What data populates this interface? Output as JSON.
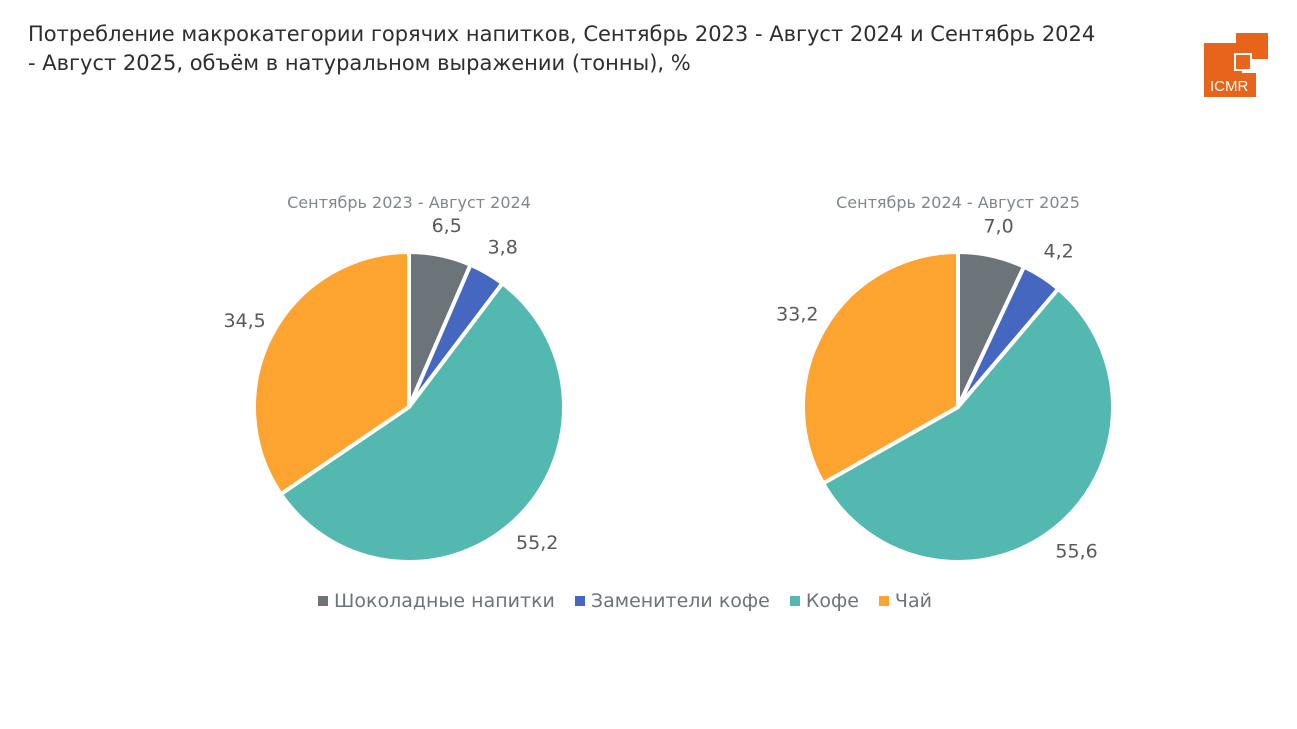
{
  "title": "Потребление макрокатегории горячих напитков, Сентябрь 2023 - Август 2024 и Сентябрь 2024 - Август 2025, объём в натуральном выражении (тонны), %",
  "logo_text": "ICMR",
  "logo_color": "#e8641b",
  "chart_data": [
    {
      "type": "pie",
      "title": "Сентябрь 2023 - Август 2024",
      "categories": [
        "Шоколадные напитки",
        "Заменители кофе",
        "Кофе",
        "Чай"
      ],
      "values": [
        6.5,
        3.8,
        55.2,
        34.5
      ],
      "labels": [
        "6,5",
        "3,8",
        "55,2",
        "34,5"
      ]
    },
    {
      "type": "pie",
      "title": "Сентябрь 2024 - Август 2025",
      "categories": [
        "Шоколадные напитки",
        "Заменители кофе",
        "Кофе",
        "Чай"
      ],
      "values": [
        7.0,
        4.2,
        55.6,
        33.2
      ],
      "labels": [
        "7,0",
        "4,2",
        "55,6",
        "33,2"
      ]
    }
  ],
  "legend": {
    "placement": "bottom",
    "items": [
      {
        "label": "Шоколадные напитки",
        "color": "#6b7478"
      },
      {
        "label": "Заменители кофе",
        "color": "#4667c0"
      },
      {
        "label": "Кофе",
        "color": "#53b8b0"
      },
      {
        "label": "Чай",
        "color": "#fda330"
      }
    ]
  }
}
